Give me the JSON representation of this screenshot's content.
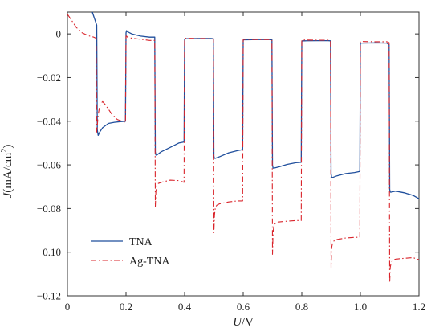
{
  "chart_data": {
    "type": "line",
    "xlabel": {
      "var": "U",
      "unit": "V"
    },
    "ylabel": {
      "var": "J",
      "unit_prefix": "(mA/cm",
      "unit_sup": "2",
      "unit_suffix": ")"
    },
    "xlim": [
      0,
      1.2
    ],
    "ylim": [
      -0.12,
      0.01
    ],
    "x_ticks": [
      0,
      0.2,
      0.4,
      0.6,
      0.8,
      1.0,
      1.2
    ],
    "x_tick_labels": [
      "0",
      "0.2",
      "0.4",
      "0.6",
      "0.8",
      "1.0",
      "1.2"
    ],
    "y_ticks": [
      0,
      -0.02,
      -0.04,
      -0.06,
      -0.08,
      -0.1,
      -0.12
    ],
    "y_tick_labels": [
      "0",
      "−0.02",
      "−0.04",
      "−0.06",
      "−0.08",
      "−0.10",
      "−0.12"
    ],
    "grid": false,
    "legend_position": "bottom-left",
    "series": [
      {
        "name": "TNA",
        "color": "#1f4e9c",
        "dash": "solid",
        "x": [
          0.085,
          0.095,
          0.1,
          0.102,
          0.105,
          0.11,
          0.12,
          0.14,
          0.16,
          0.18,
          0.198,
          0.2,
          0.202,
          0.205,
          0.22,
          0.25,
          0.28,
          0.298,
          0.3,
          0.302,
          0.305,
          0.32,
          0.35,
          0.38,
          0.398,
          0.4,
          0.402,
          0.41,
          0.45,
          0.49,
          0.498,
          0.5,
          0.502,
          0.505,
          0.52,
          0.55,
          0.58,
          0.598,
          0.6,
          0.602,
          0.61,
          0.65,
          0.69,
          0.698,
          0.7,
          0.702,
          0.705,
          0.72,
          0.75,
          0.78,
          0.798,
          0.8,
          0.802,
          0.81,
          0.85,
          0.89,
          0.898,
          0.9,
          0.902,
          0.905,
          0.92,
          0.95,
          0.98,
          0.998,
          1.0,
          1.002,
          1.01,
          1.05,
          1.09,
          1.098,
          1.1,
          1.102,
          1.105,
          1.12,
          1.15,
          1.18,
          1.2
        ],
        "y": [
          0.01,
          0.006,
          0.004,
          -0.044,
          -0.0465,
          -0.045,
          -0.043,
          -0.041,
          -0.0405,
          -0.0402,
          -0.04,
          0.0005,
          0.0015,
          0.001,
          0.0,
          -0.001,
          -0.0015,
          -0.0015,
          -0.054,
          -0.0555,
          -0.0555,
          -0.054,
          -0.052,
          -0.05,
          -0.0495,
          -0.0025,
          -0.0022,
          -0.0022,
          -0.0021,
          -0.0021,
          -0.0022,
          -0.056,
          -0.057,
          -0.057,
          -0.0562,
          -0.0545,
          -0.0535,
          -0.053,
          -0.003,
          -0.0027,
          -0.0027,
          -0.0026,
          -0.0026,
          -0.0027,
          -0.06,
          -0.0615,
          -0.0615,
          -0.061,
          -0.0598,
          -0.059,
          -0.0588,
          -0.0035,
          -0.0032,
          -0.0032,
          -0.0031,
          -0.0031,
          -0.0032,
          -0.064,
          -0.0658,
          -0.0658,
          -0.065,
          -0.064,
          -0.0635,
          -0.063,
          -0.0045,
          -0.0042,
          -0.0042,
          -0.0041,
          -0.0042,
          -0.005,
          -0.0712,
          -0.0725,
          -0.0725,
          -0.072,
          -0.0728,
          -0.074,
          -0.0755
        ]
      },
      {
        "name": "Ag-TNA",
        "color": "#d9242b",
        "dash": "dashdot",
        "x": [
          0.0,
          0.01,
          0.03,
          0.05,
          0.07,
          0.09,
          0.098,
          0.1,
          0.102,
          0.105,
          0.11,
          0.115,
          0.12,
          0.13,
          0.15,
          0.17,
          0.19,
          0.198,
          0.2,
          0.202,
          0.205,
          0.22,
          0.25,
          0.28,
          0.298,
          0.3,
          0.302,
          0.305,
          0.31,
          0.32,
          0.35,
          0.38,
          0.398,
          0.4,
          0.402,
          0.41,
          0.45,
          0.49,
          0.498,
          0.5,
          0.502,
          0.505,
          0.51,
          0.52,
          0.55,
          0.58,
          0.598,
          0.6,
          0.602,
          0.61,
          0.65,
          0.69,
          0.698,
          0.7,
          0.702,
          0.705,
          0.71,
          0.72,
          0.75,
          0.78,
          0.798,
          0.8,
          0.802,
          0.81,
          0.85,
          0.89,
          0.898,
          0.9,
          0.902,
          0.905,
          0.91,
          0.92,
          0.95,
          0.98,
          0.998,
          1.0,
          1.002,
          1.01,
          1.05,
          1.09,
          1.098,
          1.1,
          1.102,
          1.105,
          1.11,
          1.12,
          1.15,
          1.18,
          1.2
        ],
        "y": [
          0.009,
          0.007,
          0.003,
          0.0005,
          -0.0008,
          -0.0015,
          -0.002,
          -0.045,
          -0.042,
          -0.037,
          -0.033,
          -0.0318,
          -0.031,
          -0.0325,
          -0.0365,
          -0.0392,
          -0.0402,
          -0.0405,
          -0.001,
          -0.001,
          -0.0015,
          -0.002,
          -0.0025,
          -0.003,
          -0.003,
          -0.079,
          -0.072,
          -0.0695,
          -0.0685,
          -0.068,
          -0.067,
          -0.0672,
          -0.068,
          -0.002,
          -0.002,
          -0.002,
          -0.0021,
          -0.0021,
          -0.0025,
          -0.091,
          -0.083,
          -0.0795,
          -0.0785,
          -0.0778,
          -0.077,
          -0.0765,
          -0.0765,
          -0.0025,
          -0.0025,
          -0.0025,
          -0.0026,
          -0.0026,
          -0.003,
          -0.101,
          -0.091,
          -0.0878,
          -0.0868,
          -0.0862,
          -0.0858,
          -0.0855,
          -0.0855,
          -0.0028,
          -0.0028,
          -0.0028,
          -0.0029,
          -0.0029,
          -0.0033,
          -0.107,
          -0.098,
          -0.0958,
          -0.0948,
          -0.0942,
          -0.0935,
          -0.0932,
          -0.0932,
          -0.0035,
          -0.0035,
          -0.0035,
          -0.0036,
          -0.0036,
          -0.004,
          -0.114,
          -0.107,
          -0.1048,
          -0.1038,
          -0.1032,
          -0.1028,
          -0.1025,
          -0.1035
        ]
      }
    ]
  }
}
